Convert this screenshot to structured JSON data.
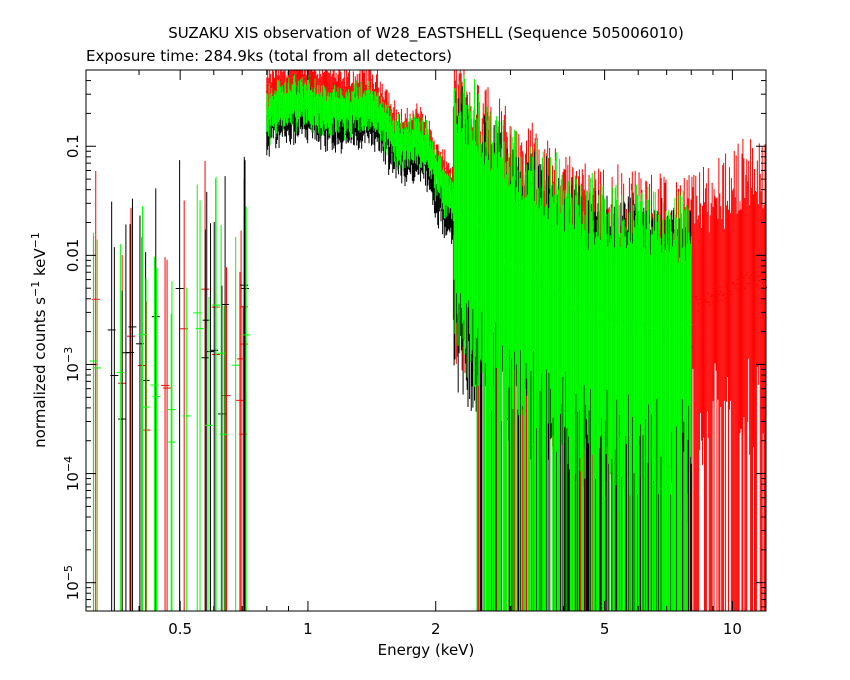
{
  "chart_data": {
    "type": "scatter",
    "title": "SUZAKU XIS observation of W28_EASTSHELL (Sequence 505006010)",
    "subtitle": "Exposure time: 284.9ks (total from all detectors)",
    "xlabel": "Energy (keV)",
    "ylabel": {
      "base": "normalized counts s",
      "exp1": "−1",
      "mid": " keV",
      "exp2": "−1"
    },
    "x_scale": "log",
    "y_scale": "log",
    "xlim": [
      0.3,
      12
    ],
    "ylim": [
      5.5e-06,
      0.5
    ],
    "grid": false,
    "x_major_ticks": [
      {
        "value": 0.5,
        "label": "0.5"
      },
      {
        "value": 1,
        "label": "1"
      },
      {
        "value": 2,
        "label": "2"
      },
      {
        "value": 5,
        "label": "5"
      },
      {
        "value": 10,
        "label": "10"
      }
    ],
    "y_major_ticks": [
      {
        "value": 0.1,
        "base": "0.1",
        "exp": ""
      },
      {
        "value": 0.01,
        "base": "0.01",
        "exp": ""
      },
      {
        "value": 0.001,
        "base": "10",
        "exp": "−3"
      },
      {
        "value": 0.0001,
        "base": "10",
        "exp": "−4"
      },
      {
        "value": 1e-05,
        "base": "10",
        "exp": "−5"
      }
    ],
    "series": [
      {
        "color": "#ff0000",
        "x": [
          0.8,
          0.85,
          0.9,
          0.95,
          1.0,
          1.1,
          1.2,
          1.3,
          1.4,
          1.5,
          1.6,
          1.7,
          1.8,
          1.9,
          2.0,
          2.2,
          2.5,
          3.0,
          4.0,
          5.0,
          6.0,
          7.0,
          8.0,
          9.0,
          10.0,
          11.0,
          12.0
        ],
        "y": [
          0.3,
          0.35,
          0.38,
          0.4,
          0.4,
          0.35,
          0.3,
          0.3,
          0.32,
          0.25,
          0.15,
          0.12,
          0.15,
          0.12,
          0.07,
          0.04,
          0.025,
          0.012,
          0.005,
          0.0035,
          0.003,
          0.003,
          0.0035,
          0.004,
          0.005,
          0.006,
          0.006
        ]
      },
      {
        "color": "#000000",
        "x": [
          0.8,
          0.85,
          0.9,
          0.95,
          1.0,
          1.1,
          1.2,
          1.3,
          1.4,
          1.5,
          1.6,
          1.7,
          1.8,
          1.9,
          2.0,
          2.2,
          2.5,
          3.0,
          4.0,
          5.0,
          6.0,
          7.0,
          8.0
        ],
        "y": [
          0.15,
          0.18,
          0.2,
          0.2,
          0.2,
          0.18,
          0.16,
          0.17,
          0.18,
          0.14,
          0.09,
          0.08,
          0.09,
          0.07,
          0.04,
          0.02,
          0.012,
          0.006,
          0.003,
          0.002,
          0.0018,
          0.0015,
          0.0015
        ]
      },
      {
        "color": "#00ff00",
        "x": [
          0.8,
          0.85,
          0.9,
          0.95,
          1.0,
          1.1,
          1.2,
          1.3,
          1.4,
          1.5,
          1.6,
          1.7,
          1.8,
          1.9,
          2.0,
          2.2,
          2.5,
          3.0,
          4.0,
          5.0,
          6.0,
          7.0,
          8.0
        ],
        "y": [
          0.2,
          0.24,
          0.25,
          0.26,
          0.25,
          0.22,
          0.2,
          0.22,
          0.25,
          0.18,
          0.12,
          0.1,
          0.12,
          0.1,
          0.06,
          0.03,
          0.018,
          0.009,
          0.004,
          0.0025,
          0.0022,
          0.002,
          0.002
        ]
      }
    ]
  }
}
